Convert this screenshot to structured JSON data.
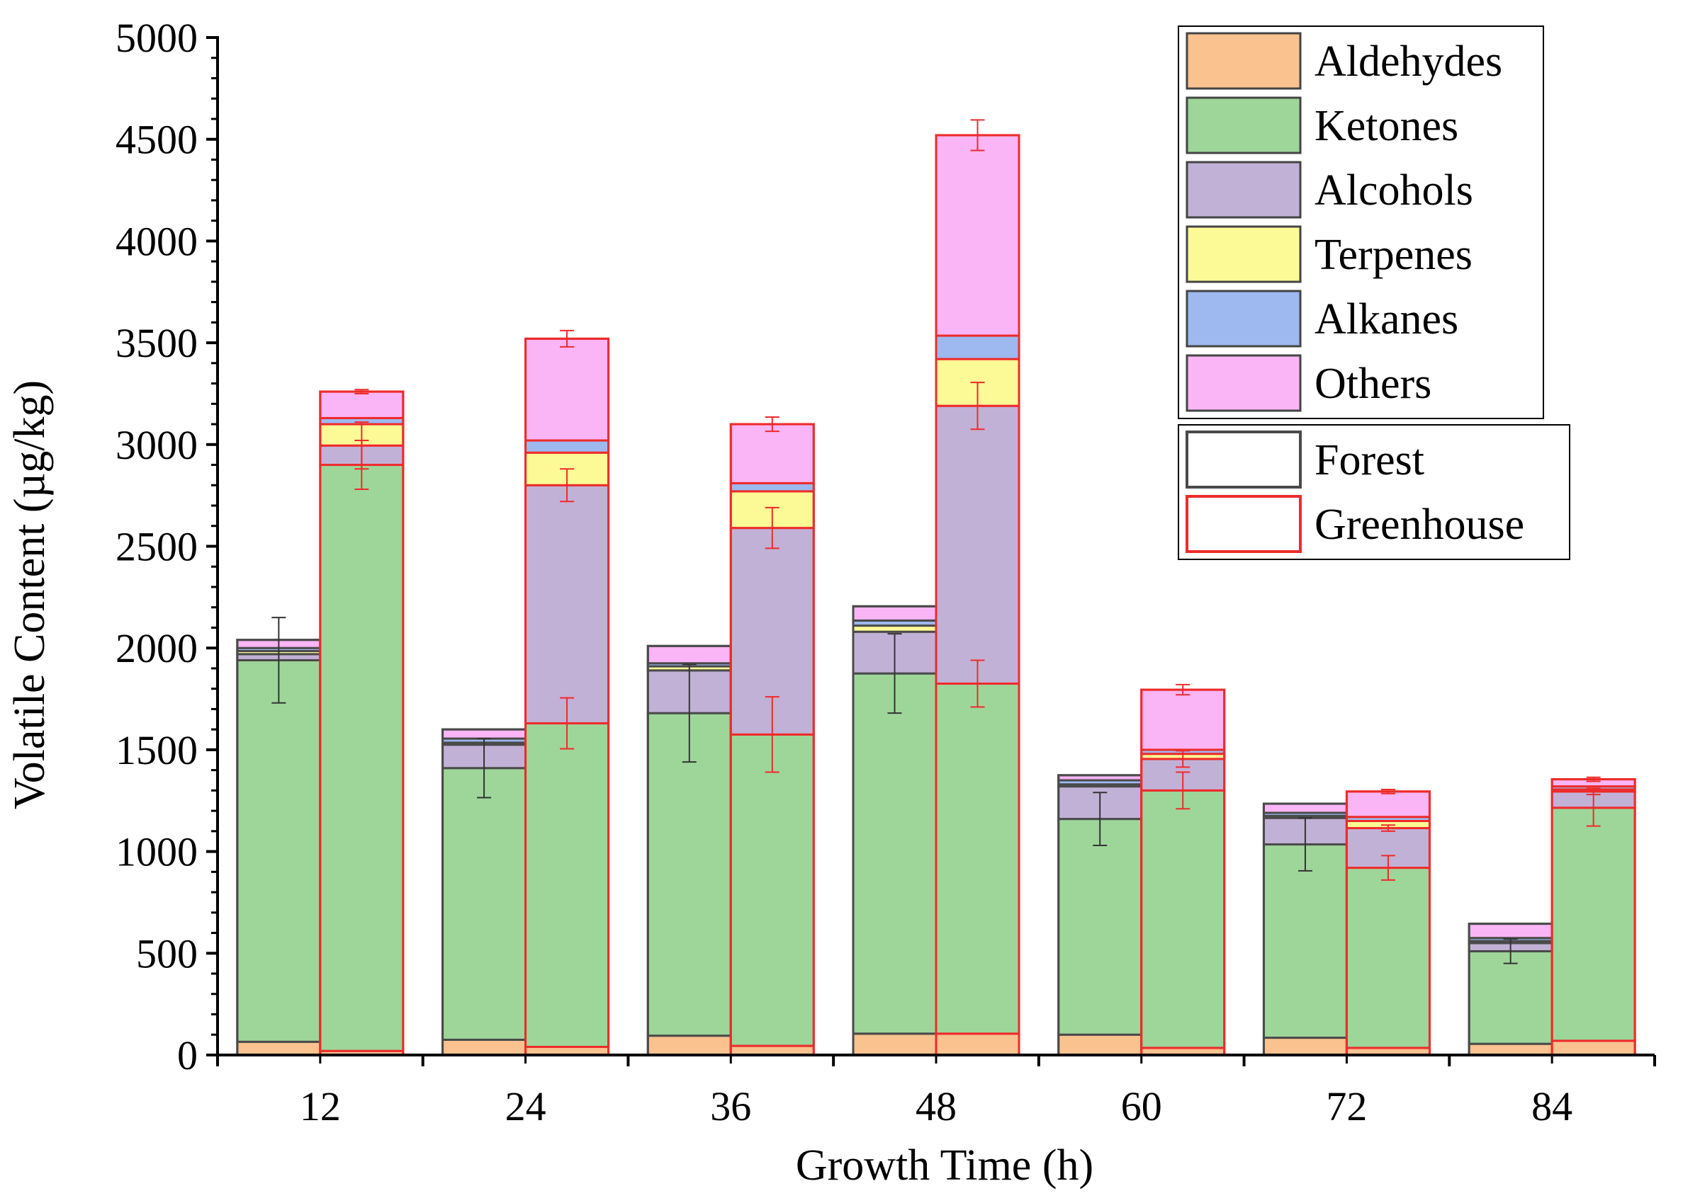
{
  "chart_data": {
    "type": "bar",
    "stacked": true,
    "title": "",
    "xlabel": "Growth Time (h)",
    "ylabel": "Volatile Content  (µg/kg)",
    "ylim": [
      0,
      5000
    ],
    "yticks": [
      0,
      500,
      1000,
      1500,
      2000,
      2500,
      3000,
      3500,
      4000,
      4500,
      5000
    ],
    "categories": [
      "12",
      "24",
      "36",
      "48",
      "60",
      "72",
      "84"
    ],
    "components": [
      {
        "name": "Aldehydes",
        "color": "#f9c28f"
      },
      {
        "name": "Ketones",
        "color": "#9ed69a"
      },
      {
        "name": "Alcohols",
        "color": "#c2b1d6"
      },
      {
        "name": "Terpenes",
        "color": "#fcfa96"
      },
      {
        "name": "Alkanes",
        "color": "#9db9ef"
      },
      {
        "name": "Others",
        "color": "#f9b5f5"
      }
    ],
    "groups": [
      {
        "name": "Forest",
        "edge_color": "#4a4a4a",
        "error_color": "#333333"
      },
      {
        "name": "Greenhouse",
        "edge_color": "#ee2b2b",
        "error_color": "#ee2b2b"
      }
    ],
    "series": [
      {
        "group": "Forest",
        "Aldehydes": [
          65,
          75,
          95,
          105,
          100,
          85,
          55
        ],
        "Ketones": [
          1875,
          1335,
          1585,
          1770,
          1060,
          950,
          455
        ],
        "Alcohols": [
          30,
          115,
          210,
          205,
          160,
          130,
          40
        ],
        "Terpenes": [
          15,
          10,
          20,
          30,
          10,
          10,
          10
        ],
        "Alkanes": [
          15,
          20,
          15,
          25,
          20,
          15,
          15
        ],
        "Others": [
          40,
          45,
          85,
          70,
          25,
          45,
          70
        ],
        "total": [
          2040,
          1600,
          2010,
          2205,
          1375,
          1235,
          645
        ],
        "ketones_error": [
          210,
          145,
          240,
          195,
          130,
          130,
          60
        ]
      },
      {
        "group": "Greenhouse",
        "Aldehydes": [
          20,
          40,
          45,
          105,
          35,
          35,
          70
        ],
        "Ketones": [
          2880,
          1590,
          1530,
          1720,
          1265,
          885,
          1145
        ],
        "Alcohols": [
          95,
          1170,
          1015,
          1365,
          155,
          195,
          80
        ],
        "Terpenes": [
          105,
          160,
          180,
          230,
          25,
          35,
          10
        ],
        "Alkanes": [
          30,
          60,
          40,
          115,
          20,
          20,
          15
        ],
        "Others": [
          130,
          500,
          290,
          985,
          295,
          125,
          35
        ],
        "total": [
          3260,
          3520,
          3100,
          4520,
          1795,
          1295,
          1355
        ],
        "ketones_error": [
          120,
          125,
          185,
          115,
          90,
          60,
          90
        ],
        "alcohols_error": [
          115,
          80,
          100,
          115,
          40,
          15,
          15
        ],
        "top_error": [
          10,
          40,
          35,
          75,
          25,
          10,
          10
        ]
      }
    ],
    "legend_position": "top-right"
  }
}
